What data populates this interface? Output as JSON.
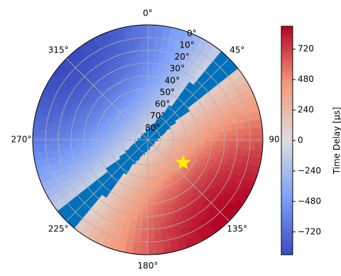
{
  "chart_data": {
    "type": "heatmap",
    "projection": "polar",
    "azimuth_ticks": [
      {
        "deg": 0,
        "label": "0°"
      },
      {
        "deg": 45,
        "label": "45°"
      },
      {
        "deg": 90,
        "label": "90"
      },
      {
        "deg": 135,
        "label": "135°"
      },
      {
        "deg": 180,
        "label": "180°"
      },
      {
        "deg": 225,
        "label": "225°"
      },
      {
        "deg": 270,
        "label": "270°"
      },
      {
        "deg": 315,
        "label": "315°"
      }
    ],
    "zenith_ticks": [
      {
        "deg": 0,
        "label": "0°"
      },
      {
        "deg": 10,
        "label": "10°"
      },
      {
        "deg": 20,
        "label": "20°"
      },
      {
        "deg": 30,
        "label": "30°"
      },
      {
        "deg": 40,
        "label": "40°"
      },
      {
        "deg": 50,
        "label": "50°"
      },
      {
        "deg": 60,
        "label": "60°"
      },
      {
        "deg": 70,
        "label": "70°"
      },
      {
        "deg": 80,
        "label": "80°"
      }
    ],
    "radial_range": [
      90,
      0
    ],
    "time_delay_max_us": 900,
    "highlight_band": {
      "description_color": "#0072bc",
      "min_us": -90,
      "max_us": 90
    },
    "marker": {
      "symbol": "star",
      "color": "#ffee00",
      "azimuth_deg": 123,
      "zenith_deg": 57
    },
    "colorbar": {
      "label": "Time Delay [μs]",
      "range": [
        -900,
        900
      ],
      "ticks": [
        {
          "value": 720,
          "label": "720"
        },
        {
          "value": 480,
          "label": "480"
        },
        {
          "value": 240,
          "label": "240"
        },
        {
          "value": 0,
          "label": "0"
        },
        {
          "value": -240,
          "label": "−240"
        },
        {
          "value": -480,
          "label": "−480"
        },
        {
          "value": -720,
          "label": "−720"
        }
      ]
    },
    "grid": true,
    "colormap": "coolwarm"
  }
}
